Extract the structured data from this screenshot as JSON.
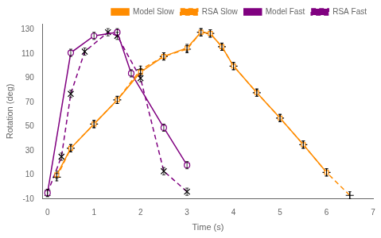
{
  "chart_data": {
    "type": "line",
    "xlabel": "Time (s)",
    "ylabel": "Rotation (deg)",
    "xlim": [
      -0.1,
      7.0
    ],
    "ylim": [
      -10,
      135
    ],
    "xticks": [
      0,
      1,
      2,
      3,
      4,
      5,
      6,
      7
    ],
    "yticks": [
      -10,
      10,
      30,
      50,
      70,
      90,
      110,
      130
    ],
    "grid": false,
    "legend": "upper right",
    "series": [
      {
        "name": "Model Slow",
        "color": "#FF8C00",
        "marker": "square",
        "line_style": "solid",
        "x": [
          0.2,
          0.5,
          1.0,
          1.5,
          2.0,
          2.5,
          3.0,
          3.3,
          3.5,
          3.75,
          4.0,
          4.5,
          5.0,
          5.5,
          6.0
        ],
        "values": [
          10,
          32,
          52,
          72,
          95,
          108,
          115,
          128,
          127,
          116,
          100,
          78,
          57,
          35,
          12
        ],
        "yerr": [
          3,
          3,
          3,
          3,
          3,
          3,
          3,
          3,
          3,
          3,
          3,
          3,
          3,
          3,
          3
        ]
      },
      {
        "name": "RSA Slow",
        "color": "#FF8C00",
        "marker": "plus",
        "line_style": "dashed",
        "x": [
          0.2,
          0.5,
          1.0,
          1.5,
          2.0,
          2.5,
          3.0,
          3.3,
          3.5,
          3.75,
          4.0,
          4.5,
          5.0,
          5.5,
          6.0,
          6.5
        ],
        "values": [
          8,
          32,
          52,
          72,
          97,
          108,
          114,
          128,
          127,
          116,
          100,
          78,
          57,
          35,
          12,
          -7
        ],
        "yerr": [
          3,
          3,
          3,
          3,
          3,
          3,
          3,
          3,
          3,
          3,
          3,
          3,
          3,
          3,
          3,
          3
        ]
      },
      {
        "name": "Model Fast",
        "color": "#800080",
        "marker": "circle",
        "line_style": "solid",
        "x": [
          0.0,
          0.5,
          1.0,
          1.5,
          1.8,
          2.5,
          3.0
        ],
        "values": [
          -5,
          111,
          125,
          128,
          94,
          49,
          18
        ],
        "yerr": [
          3,
          3,
          3,
          3,
          3,
          3,
          3
        ]
      },
      {
        "name": "RSA Fast",
        "color": "#800080",
        "marker": "x",
        "line_style": "dashed",
        "x": [
          0.0,
          0.3,
          0.5,
          0.8,
          1.3,
          1.5,
          2.0,
          2.5,
          3.0
        ],
        "values": [
          -5,
          25,
          77,
          112,
          128,
          125,
          90,
          13,
          -4
        ],
        "yerr": [
          3,
          3,
          3,
          3,
          3,
          3,
          3,
          3,
          3
        ]
      }
    ]
  }
}
